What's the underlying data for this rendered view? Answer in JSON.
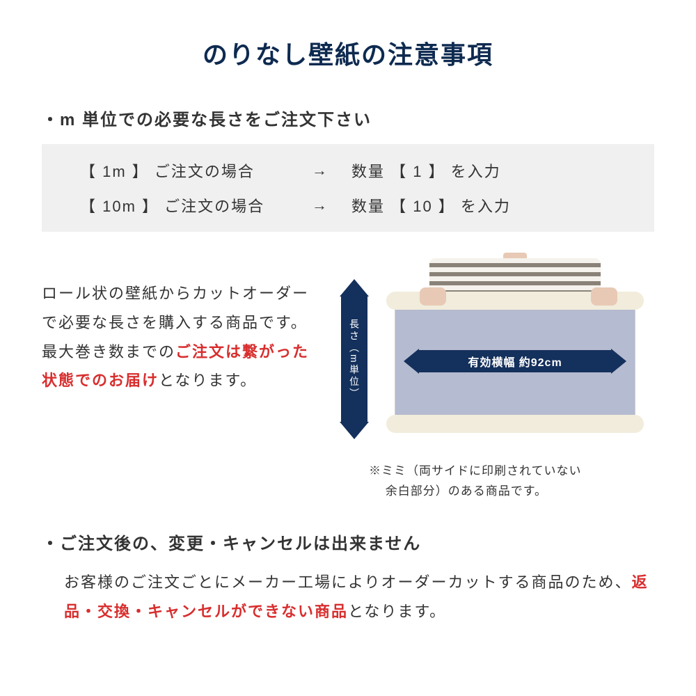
{
  "colors": {
    "title": "#0e2a50",
    "text": "#333333",
    "red": "#d82e2e",
    "example_bg": "#f0f0f0",
    "arrow_navy": "#14305c",
    "wallpaper_sheet": "#b5bbd0"
  },
  "title": "のりなし壁紙の注意事項",
  "section1": {
    "heading": "・m 単位での必要な長さをご注文下さい",
    "examples": [
      {
        "left": "【 1m 】 ご注文の場合",
        "arrow": "→",
        "right": "数量 【 1 】 を入力"
      },
      {
        "left": "【 10m 】 ご注文の場合",
        "arrow": "→",
        "right": "数量 【 10 】 を入力"
      }
    ]
  },
  "description": {
    "pre": "ロール状の壁紙からカットオーダーで必要な長さを購入する商品です。最大巻き数までの",
    "highlight": "ご注文は繋がった状態でのお届け",
    "post": "となります。"
  },
  "diagram": {
    "vertical_label": "長さ（m単位）",
    "horizontal_label": "有効横幅 約92cm",
    "note": "※ミミ（両サイドに印刷されていない\n　 余白部分）のある商品です。"
  },
  "section2": {
    "heading": "・ご注文後の、変更・キャンセルは出来ません",
    "desc_pre": "お客様のご注文ごとにメーカー工場によりオーダーカットする商品のため、",
    "desc_highlight": "返品・交換・キャンセルができない商品",
    "desc_post": "となります。"
  }
}
